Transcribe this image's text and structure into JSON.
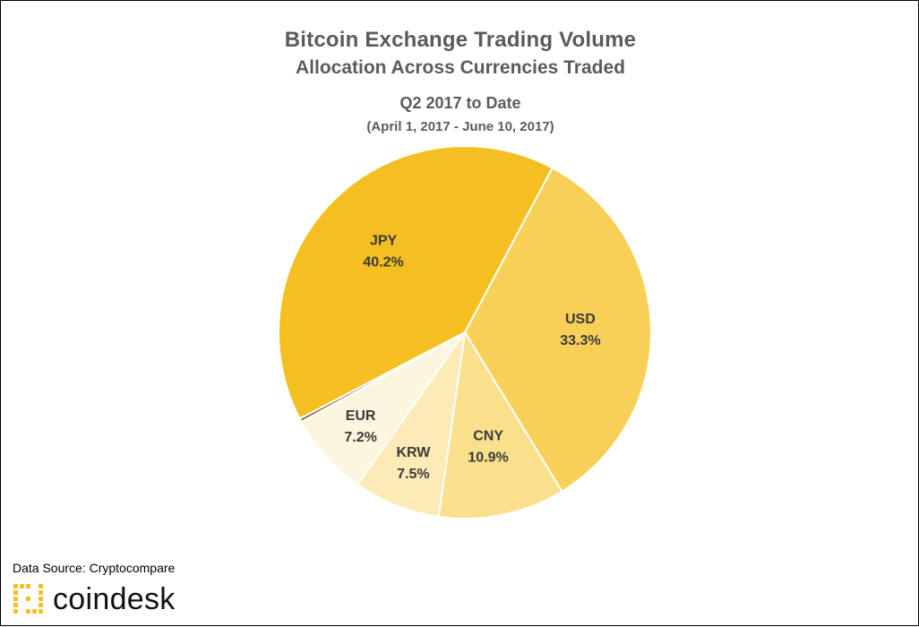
{
  "chart_data": {
    "type": "pie",
    "title": "Bitcoin Exchange Trading Volume",
    "subtitle": "Allocation Across Currencies Traded",
    "period": "Q2 2017 to Date",
    "date_range": "(April 1, 2017 - June 10, 2017)",
    "slices": [
      {
        "label": "USD",
        "value": 33.3,
        "value_label": "33.3%",
        "color": "#f8d057"
      },
      {
        "label": "CNY",
        "value": 10.9,
        "value_label": "10.9%",
        "color": "#fadf8c"
      },
      {
        "label": "KRW",
        "value": 7.5,
        "value_label": "7.5%",
        "color": "#fcebb6"
      },
      {
        "label": "EUR",
        "value": 7.2,
        "value_label": "7.2%",
        "color": "#fdf6de"
      },
      {
        "label": "",
        "value": 0.3,
        "value_label": "",
        "color": "#7a6a3a"
      },
      {
        "label": "JPY",
        "value": 40.2,
        "value_label": "40.2%",
        "color": "#f5bf21"
      }
    ]
  },
  "footer": {
    "source": "Data Source: Cryptocompare",
    "logo_text": "coindesk",
    "logo_color": "#f5bf21"
  }
}
